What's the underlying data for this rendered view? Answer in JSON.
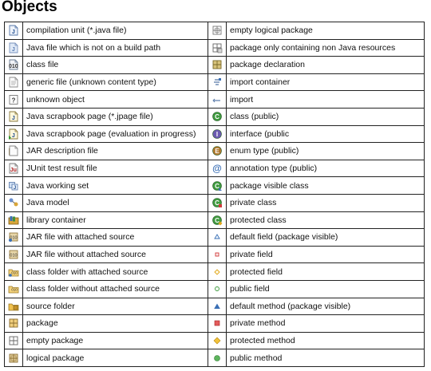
{
  "page": {
    "title": "Objects"
  },
  "rows": [
    {
      "left": {
        "icon": "java-file-icon",
        "label": "compilation unit (*.java file)"
      },
      "right": {
        "icon": "empty-logical-package-icon",
        "label": "empty logical package"
      }
    },
    {
      "left": {
        "icon": "java-file-not-on-build-path-icon",
        "label": "Java file which is not on a build path"
      },
      "right": {
        "icon": "non-java-resources-package-icon",
        "label": "package only containing non Java resources"
      }
    },
    {
      "left": {
        "icon": "class-file-icon",
        "label": "class file"
      },
      "right": {
        "icon": "package-declaration-icon",
        "label": "package declaration"
      }
    },
    {
      "left": {
        "icon": "generic-file-icon",
        "label": "generic file (unknown content type)"
      },
      "right": {
        "icon": "import-container-icon",
        "label": "import container"
      }
    },
    {
      "left": {
        "icon": "unknown-object-icon",
        "label": "unknown object"
      },
      "right": {
        "icon": "import-icon",
        "label": "import"
      }
    },
    {
      "left": {
        "icon": "scrapbook-page-icon",
        "label": "Java scrapbook page (*.jpage file)"
      },
      "right": {
        "icon": "public-class-icon",
        "label": "class (public)"
      }
    },
    {
      "left": {
        "icon": "scrapbook-page-evaluating-icon",
        "label": "Java scrapbook page (evaluation in progress)"
      },
      "right": {
        "icon": "public-interface-icon",
        "label": "interface (public"
      }
    },
    {
      "left": {
        "icon": "jar-description-icon",
        "label": "JAR description file"
      },
      "right": {
        "icon": "public-enum-icon",
        "label": "enum type (public)"
      }
    },
    {
      "left": {
        "icon": "junit-result-icon",
        "label": "JUnit test result file"
      },
      "right": {
        "icon": "public-annotation-icon",
        "label": "annotation type (public)"
      }
    },
    {
      "left": {
        "icon": "working-set-icon",
        "label": "Java working set"
      },
      "right": {
        "icon": "package-visible-class-icon",
        "label": "package visible class"
      }
    },
    {
      "left": {
        "icon": "java-model-icon",
        "label": "Java model"
      },
      "right": {
        "icon": "private-class-icon",
        "label": "private class"
      }
    },
    {
      "left": {
        "icon": "library-container-icon",
        "label": "library container"
      },
      "right": {
        "icon": "protected-class-icon",
        "label": "protected class"
      }
    },
    {
      "left": {
        "icon": "jar-with-source-icon",
        "label": "JAR file with attached source"
      },
      "right": {
        "icon": "default-field-icon",
        "label": "default field (package visible)"
      }
    },
    {
      "left": {
        "icon": "jar-without-source-icon",
        "label": "JAR file without attached source"
      },
      "right": {
        "icon": "private-field-icon",
        "label": "private field"
      }
    },
    {
      "left": {
        "icon": "class-folder-with-source-icon",
        "label": "class folder with attached source"
      },
      "right": {
        "icon": "protected-field-icon",
        "label": "protected field"
      }
    },
    {
      "left": {
        "icon": "class-folder-without-source-icon",
        "label": "class folder without attached source"
      },
      "right": {
        "icon": "public-field-icon",
        "label": "public field"
      }
    },
    {
      "left": {
        "icon": "source-folder-icon",
        "label": "source folder"
      },
      "right": {
        "icon": "default-method-icon",
        "label": "default method (package visible)"
      }
    },
    {
      "left": {
        "icon": "package-icon",
        "label": "package"
      },
      "right": {
        "icon": "private-method-icon",
        "label": "private method"
      }
    },
    {
      "left": {
        "icon": "empty-package-icon",
        "label": "empty package"
      },
      "right": {
        "icon": "protected-method-icon",
        "label": "protected method"
      }
    },
    {
      "left": {
        "icon": "logical-package-icon",
        "label": "logical package"
      },
      "right": {
        "icon": "public-method-icon",
        "label": "public method"
      }
    }
  ]
}
